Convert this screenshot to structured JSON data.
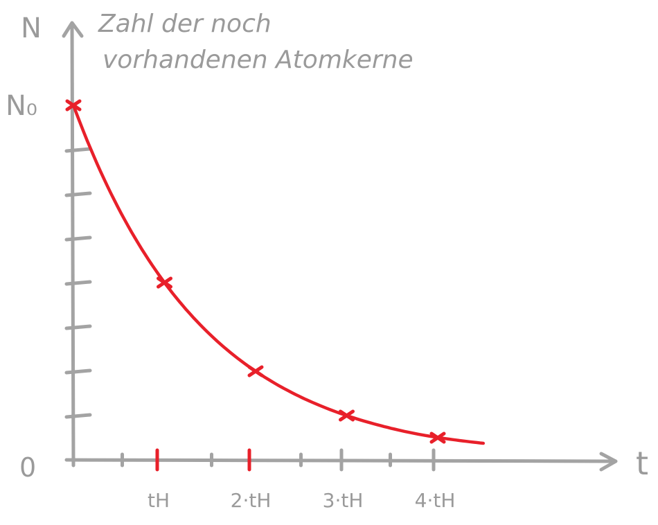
{
  "chart_data": {
    "type": "line",
    "ylabel": "N",
    "ylabel_caption": [
      "Zahl der noch",
      "vorhandenen Atomkerne"
    ],
    "xlabel": "t",
    "y_start_label": "N₀",
    "y_zero_label": "0",
    "x_tick_labels": [
      "tH",
      "2·tH",
      "3·tH",
      "4·tH"
    ],
    "x_unit": "tH",
    "y_unit": "N₀",
    "xlim": [
      0,
      5.5
    ],
    "ylim": [
      0,
      1
    ],
    "minor_x_ticks": [
      0.5,
      1.5,
      2.5,
      3.5
    ],
    "minor_y_ticks": [
      0.125,
      0.25,
      0.375,
      0.5,
      0.625,
      0.75,
      0.875
    ],
    "series": [
      {
        "x": [
          0,
          1,
          2,
          3,
          4
        ],
        "y": [
          1,
          0.5,
          0.25,
          0.125,
          0.0625
        ],
        "curve_end_x": 4.5,
        "color": "#e8202a"
      }
    ],
    "colors": {
      "axis": "#a3a3a3",
      "curve": "#e8202a",
      "text": "#9a9a9a"
    }
  }
}
